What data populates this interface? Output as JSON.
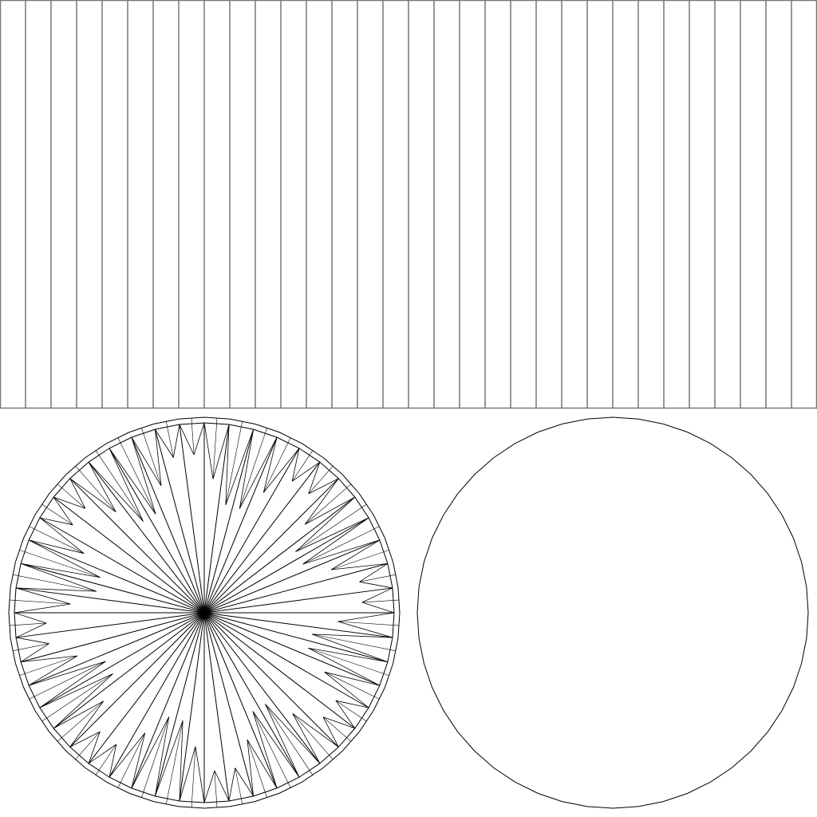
{
  "uv_layout": {
    "side_panel": {
      "strip_count": 32,
      "line_color": "#777777"
    },
    "cap_top": {
      "segments": 48,
      "line_color": "#000000",
      "style": "triangulated-fan"
    },
    "cap_bottom": {
      "segments": 48,
      "line_color": "#000000",
      "style": "outline"
    },
    "background": "#ffffff"
  }
}
